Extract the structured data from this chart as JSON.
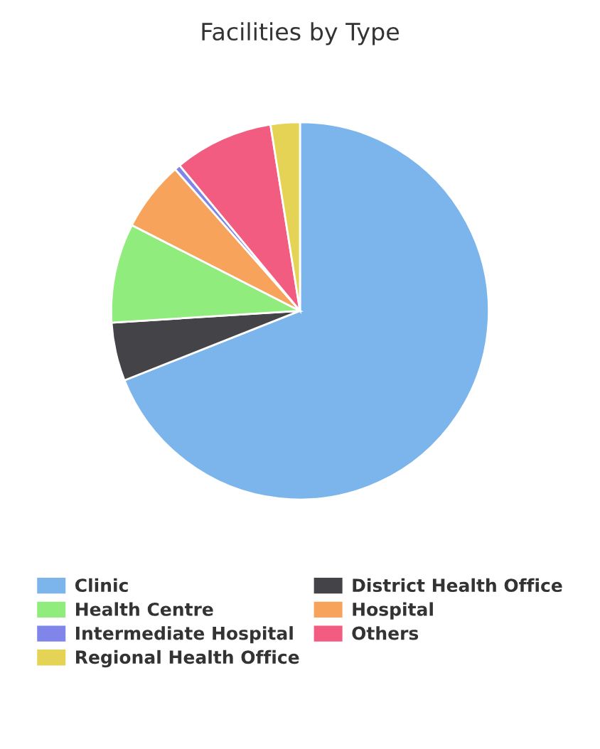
{
  "chart_data": {
    "type": "pie",
    "title": "Facilities by Type",
    "categories": [
      "Clinic",
      "District Health Office",
      "Health Centre",
      "Hospital",
      "Intermediate Hospital",
      "Others",
      "Regional Health Office"
    ],
    "values": [
      69,
      5,
      8.5,
      6,
      0.5,
      8.5,
      2.5
    ],
    "colors": [
      "#7cb5ec",
      "#434348",
      "#90ed7d",
      "#f7a35c",
      "#8085e9",
      "#f15c80",
      "#e4d354"
    ],
    "legend": "bottom"
  }
}
